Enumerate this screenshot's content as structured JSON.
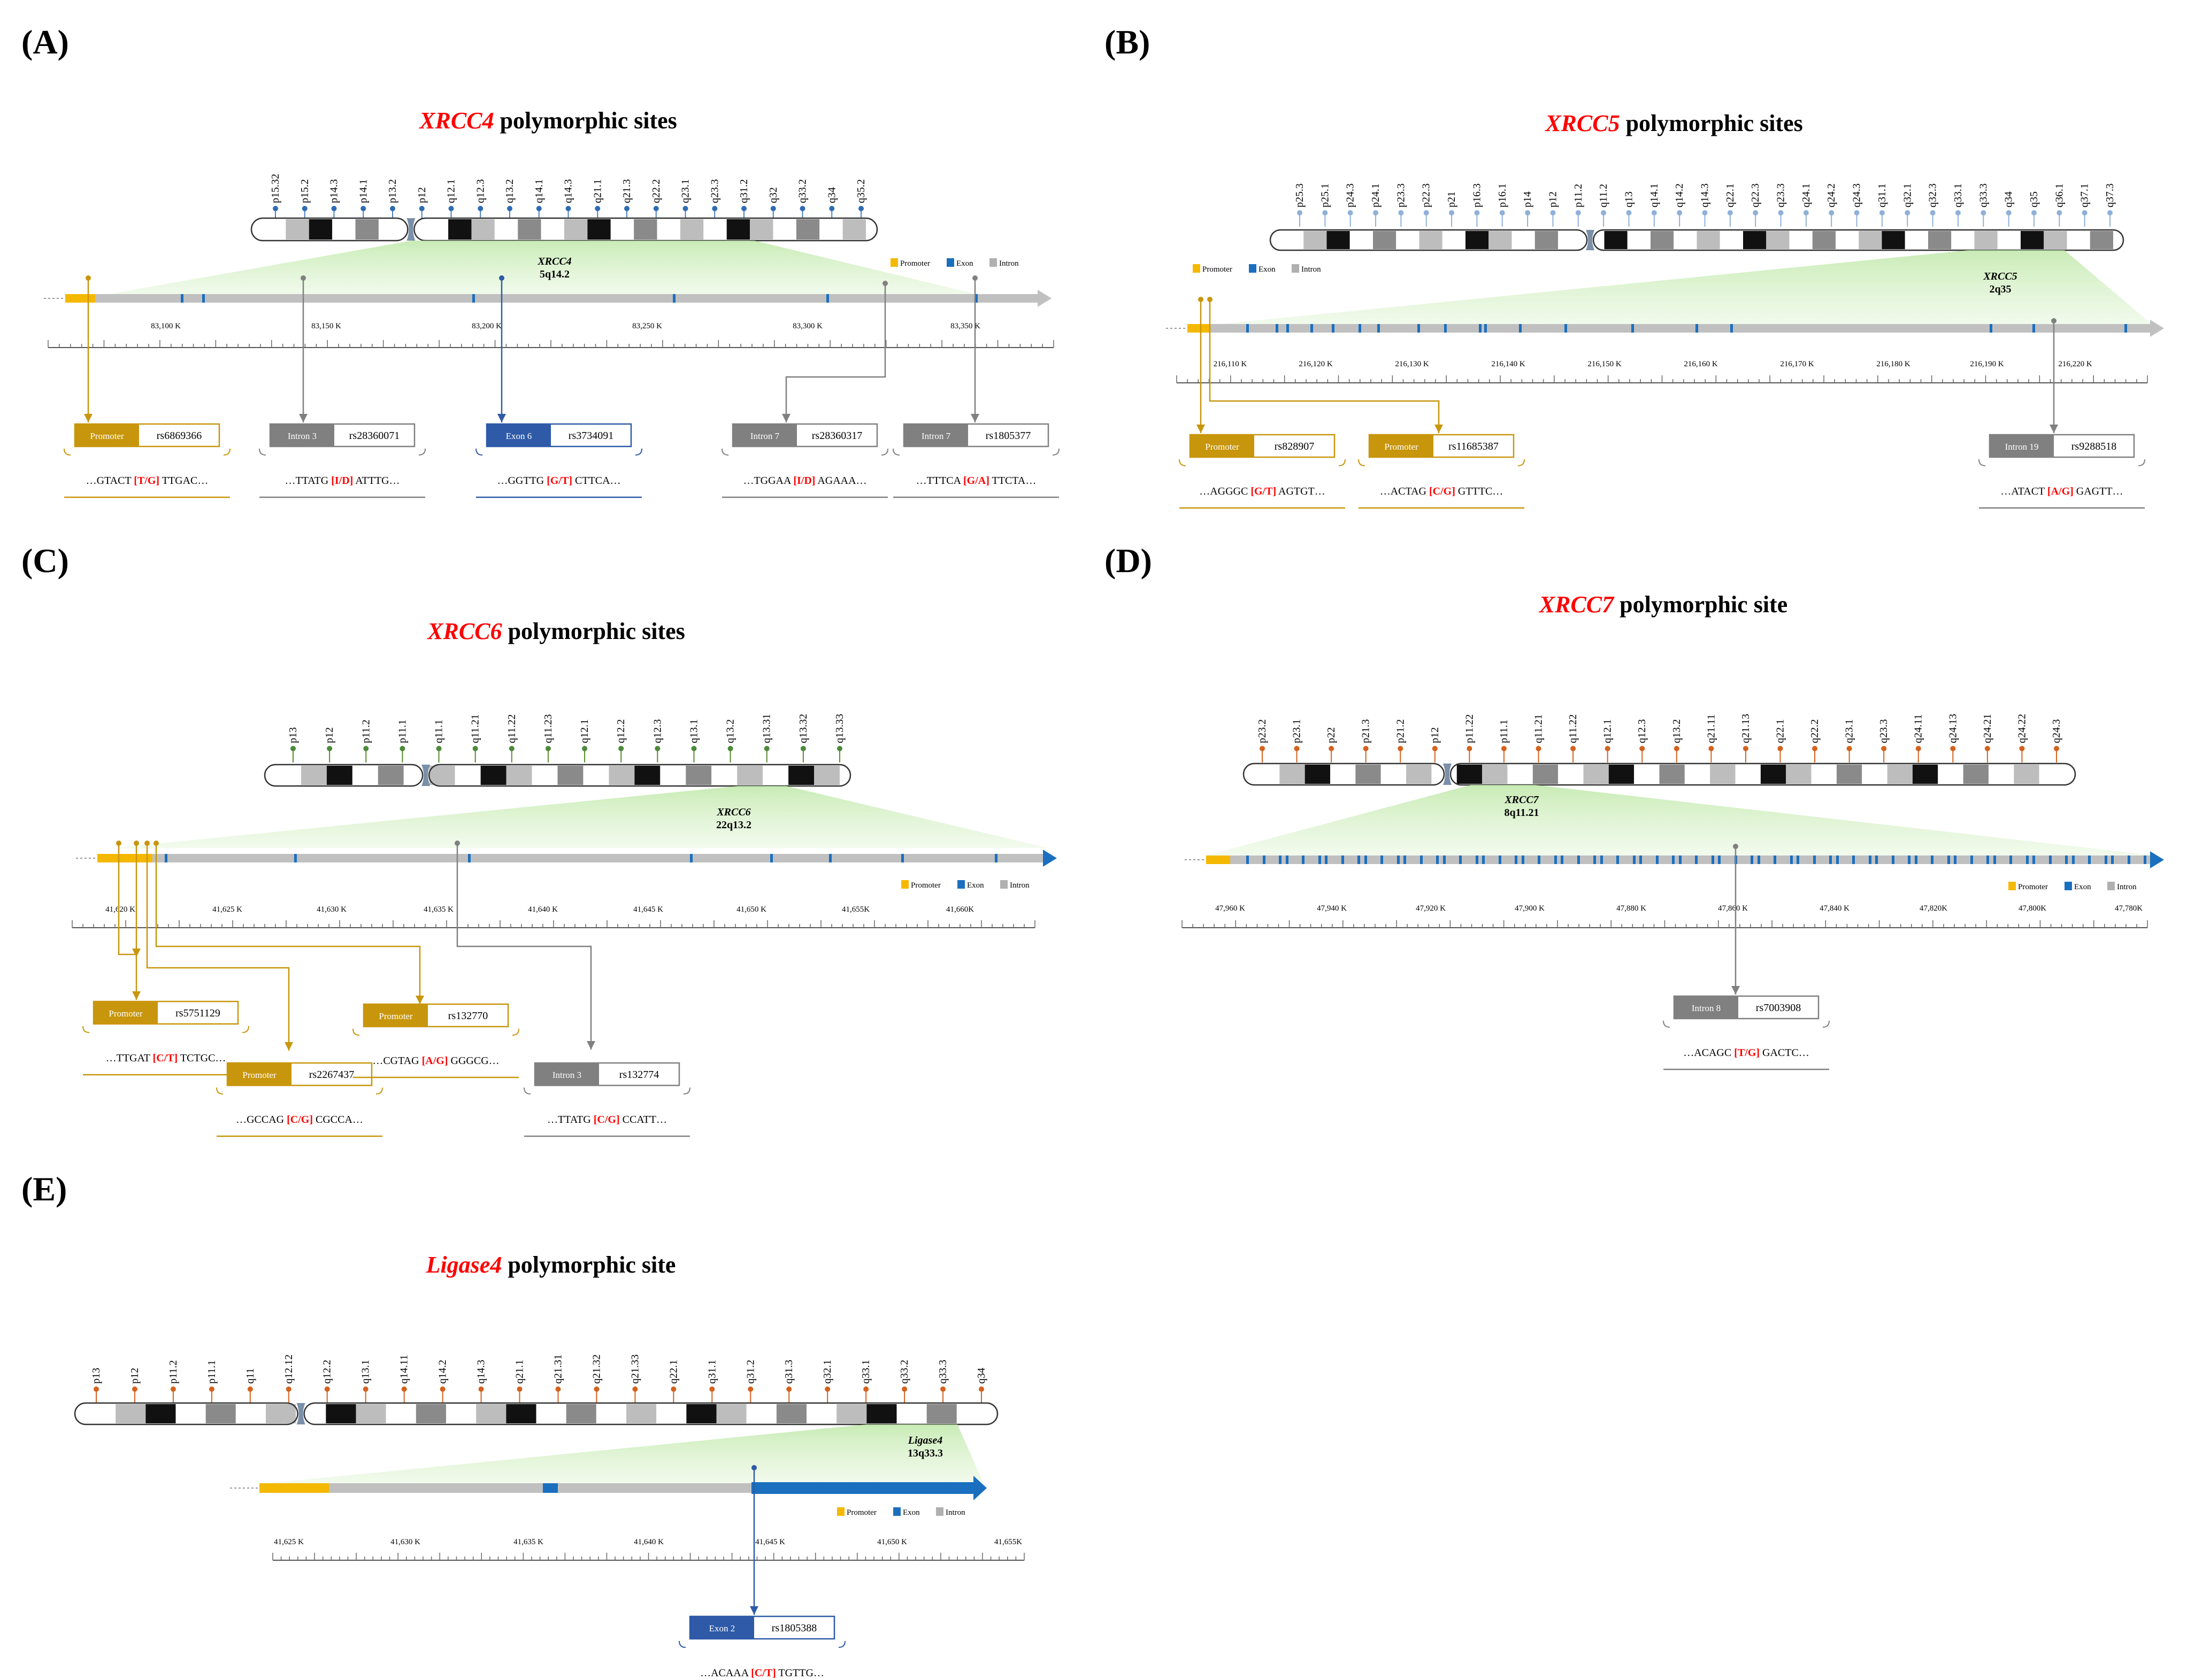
{
  "colors": {
    "red": "#ff0000",
    "promoter": "#f5b800",
    "promoter_dark": "#c8960c",
    "exon": "#1a6fbf",
    "intron": "#8c8c8c",
    "intron_line": "#c0c0c0",
    "green": "#cfeec0",
    "blue_dark": "#2e5aa8",
    "orange": "#d4621e",
    "olive": "#5a8a2a"
  },
  "legend": {
    "promoter": "Promoter",
    "exon": "Exon",
    "intron": "Intron"
  },
  "panels": [
    {
      "label": "(A)",
      "title": {
        "gene": "XRCC4",
        "rest": " polymorphic sites"
      },
      "chrom_bands": [
        "p15.32",
        "p15.2",
        "p14.3",
        "p14.1",
        "p13.2",
        "p12",
        "q12.1",
        "q12.3",
        "q13.2",
        "q14.1",
        "q14.3",
        "q21.1",
        "q21.3",
        "q22.2",
        "q23.1",
        "q23.3",
        "q31.2",
        "q32",
        "q33.2",
        "q34",
        "q35.2"
      ],
      "locus": {
        "gene": "XRCC4",
        "band": "5q14.2"
      },
      "ticks": [
        "83,100 K",
        "83,150 K",
        "83,200 K",
        "83,250 K",
        "83,300 K",
        "83,350 K"
      ],
      "snps": [
        {
          "region": "Promoter",
          "rs": "rs6869366",
          "seq_l": "…GTACT ",
          "allele": "[T/G]",
          "seq_r": " TTGAC…",
          "type": "promoter"
        },
        {
          "region": "Intron 3",
          "rs": "rs28360071",
          "seq_l": "…TTATG ",
          "allele": "[I/D]",
          "seq_r": " ATTTG…",
          "type": "intron"
        },
        {
          "region": "Exon 6",
          "rs": "rs3734091",
          "seq_l": "…GGTTG ",
          "allele": "[G/T]",
          "seq_r": " CTTCA…",
          "type": "exon"
        },
        {
          "region": "Intron 7",
          "rs": "rs28360317",
          "seq_l": "…TGGAA ",
          "allele": "[I/D]",
          "seq_r": " AGAAA…",
          "type": "intron"
        },
        {
          "region": "Intron 7",
          "rs": "rs1805377",
          "seq_l": "…TTTCA ",
          "allele": "[G/A]",
          "seq_r": " TTCTA…",
          "type": "intron"
        }
      ]
    },
    {
      "label": "(B)",
      "title": {
        "gene": "XRCC5",
        "rest": " polymorphic sites"
      },
      "chrom_bands": [
        "p25.3",
        "p25.1",
        "p24.3",
        "p24.1",
        "p23.3",
        "p22.3",
        "p21",
        "p16.3",
        "p16.1",
        "p14",
        "p12",
        "p11.2",
        "q11.2",
        "q13",
        "q14.1",
        "q14.2",
        "q14.3",
        "q22.1",
        "q22.3",
        "q23.3",
        "q24.1",
        "q24.2",
        "q24.3",
        "q31.1",
        "q32.1",
        "q32.3",
        "q33.1",
        "q33.3",
        "q34",
        "q35",
        "q36.1",
        "q37.1",
        "q37.3"
      ],
      "locus": {
        "gene": "XRCC5",
        "band": "2q35"
      },
      "ticks": [
        "216,110 K",
        "216,120 K",
        "216,130 K",
        "216,140 K",
        "216,150 K",
        "216,160 K",
        "216,170 K",
        "216,180 K",
        "216,190 K",
        "216,220 K"
      ],
      "snps": [
        {
          "region": "Promoter",
          "rs": "rs828907",
          "seq_l": "…AGGGC ",
          "allele": "[G/T]",
          "seq_r": " AGTGT…",
          "type": "promoter"
        },
        {
          "region": "Promoter",
          "rs": "rs11685387",
          "seq_l": "…ACTAG ",
          "allele": "[C/G]",
          "seq_r": " GTTTC…",
          "type": "promoter"
        },
        {
          "region": "Intron 19",
          "rs": "rs9288518",
          "seq_l": "…ATACT ",
          "allele": "[A/G]",
          "seq_r": " GAGTT…",
          "type": "intron"
        }
      ]
    },
    {
      "label": "(C)",
      "title": {
        "gene": "XRCC6",
        "rest": " polymorphic sites"
      },
      "chrom_bands": [
        "p13",
        "p12",
        "p11.2",
        "p11.1",
        "q11.1",
        "q11.21",
        "q11.22",
        "q11.23",
        "q12.1",
        "q12.2",
        "q12.3",
        "q13.1",
        "q13.2",
        "q13.31",
        "q13.32",
        "q13.33"
      ],
      "locus": {
        "gene": "XRCC6",
        "band": "22q13.2"
      },
      "ticks": [
        "41,620 K",
        "41,625 K",
        "41,630 K",
        "41,635 K",
        "41,640 K",
        "41,645 K",
        "41,650 K",
        "41,655K",
        "41,660K"
      ],
      "snps": [
        {
          "region": "Promoter",
          "rs": "rs5751129",
          "seq_l": "…TTGAT ",
          "allele": "[C/T]",
          "seq_r": " TCTGC…",
          "type": "promoter"
        },
        {
          "region": "Promoter",
          "rs": "rs2267437",
          "seq_l": "…GCCAG ",
          "allele": "[C/G]",
          "seq_r": " CGCCA…",
          "type": "promoter"
        },
        {
          "region": "Promoter",
          "rs": "rs132770",
          "seq_l": "…CGTAG ",
          "allele": "[A/G]",
          "seq_r": " GGGCG…",
          "type": "promoter"
        },
        {
          "region": "Intron 3",
          "rs": "rs132774",
          "seq_l": "…TTATG ",
          "allele": "[C/G]",
          "seq_r": " CCATT…",
          "type": "intron"
        }
      ]
    },
    {
      "label": "(D)",
      "title": {
        "gene": "XRCC7",
        "rest": " polymorphic site"
      },
      "chrom_bands": [
        "p23.2",
        "p23.1",
        "p22",
        "p21.3",
        "p21.2",
        "p12",
        "p11.22",
        "p11.1",
        "q11.21",
        "q11.22",
        "q12.1",
        "q12.3",
        "q13.2",
        "q21.11",
        "q21.13",
        "q22.1",
        "q22.2",
        "q23.1",
        "q23.3",
        "q24.11",
        "q24.13",
        "q24.21",
        "q24.22",
        "q24.3"
      ],
      "locus": {
        "gene": "XRCC7",
        "band": "8q11.21"
      },
      "ticks": [
        "47,960 K",
        "47,940 K",
        "47,920 K",
        "47,900 K",
        "47,880 K",
        "47,860 K",
        "47,840 K",
        "47,820K",
        "47,800K",
        "47,780K"
      ],
      "snps": [
        {
          "region": "Intron 8",
          "rs": "rs7003908",
          "seq_l": "…ACAGC ",
          "allele": "[T/G]",
          "seq_r": " GACTC…",
          "type": "intron"
        }
      ]
    },
    {
      "label": "(E)",
      "title": {
        "gene": "Ligase4",
        "rest": " polymorphic site"
      },
      "chrom_bands": [
        "p13",
        "p12",
        "p11.2",
        "p11.1",
        "q11",
        "q12.12",
        "q12.2",
        "q13.1",
        "q14.11",
        "q14.2",
        "q14.3",
        "q21.1",
        "q21.31",
        "q21.32",
        "q21.33",
        "q22.1",
        "q31.1",
        "q31.2",
        "q31.3",
        "q32.1",
        "q33.1",
        "q33.2",
        "q33.3",
        "q34"
      ],
      "locus": {
        "gene": "Ligase4",
        "band": "13q33.3"
      },
      "ticks": [
        "41,625 K",
        "41,630 K",
        "41,635 K",
        "41,640 K",
        "41,645 K",
        "41,650 K",
        "41,655K"
      ],
      "snps": [
        {
          "region": "Exon 2",
          "rs": "rs1805388",
          "seq_l": "…ACAAA ",
          "allele": "[C/T]",
          "seq_r": " TGTTG…",
          "type": "exon"
        }
      ]
    }
  ]
}
